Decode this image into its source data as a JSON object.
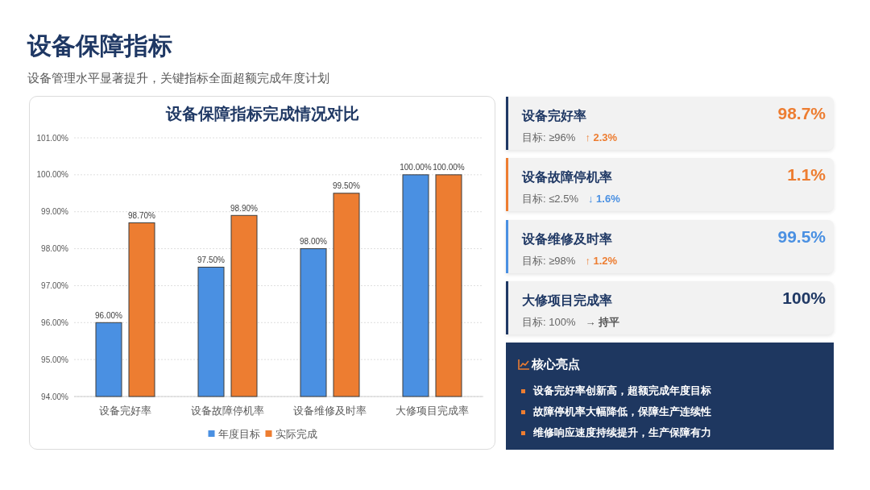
{
  "chart_data": [
    {
      "type": "other",
      "title": "设备保障指标",
      "subtitle": "设备管理水平显著提升，关键指标全面超额完成年度计划"
    },
    {
      "type": "bar",
      "title": "设备保障指标完成情况对比",
      "categories": [
        "设备完好率",
        "设备故障停机率",
        "设备维修及时率",
        "大修项目完成率"
      ],
      "series": [
        {
          "name": "年度目标",
          "color": "#4a90e2",
          "values": [
            96,
            97.5,
            98,
            100
          ],
          "value_labels": [
            "96.00%",
            "97.50%",
            "98.00%",
            "100.00%"
          ]
        },
        {
          "name": "实际完成",
          "color": "#ed7d31",
          "values": [
            98.7,
            98.9,
            99.5,
            100
          ],
          "value_labels": [
            "98.70%",
            "98.90%",
            "99.50%",
            "100.00%"
          ]
        }
      ],
      "ylim": [
        94,
        101
      ],
      "yticks": [
        {
          "value": 94,
          "label": "94.00%"
        },
        {
          "value": 95,
          "label": "95.00%"
        },
        {
          "value": 96,
          "label": "96.00%"
        },
        {
          "value": 97,
          "label": "97.00%"
        },
        {
          "value": 98,
          "label": "98.00%"
        },
        {
          "value": 99,
          "label": "99.00%"
        },
        {
          "value": 100,
          "label": "100.00%"
        },
        {
          "value": 101,
          "label": "101.00%"
        }
      ],
      "grid": "y",
      "legend": "bottom"
    },
    {
      "type": "other",
      "title": "设备完好率",
      "annotations": [
        "98.7%",
        "目标: ≥96%",
        "↑ 2.3%"
      ],
      "colors": [
        "#1f3864",
        "#ed7d31",
        "#ed7d31"
      ]
    },
    {
      "type": "other",
      "title": "设备故障停机率",
      "annotations": [
        "1.1%",
        "目标: ≤2.5%",
        "↓ 1.6%"
      ],
      "colors": [
        "#ed7d31",
        "#ed7d31",
        "#4a90e2"
      ]
    },
    {
      "type": "other",
      "title": "设备维修及时率",
      "annotations": [
        "99.5%",
        "目标: ≥98%",
        "↑ 1.2%"
      ],
      "colors": [
        "#4a90e2",
        "#4a90e2",
        "#ed7d31"
      ]
    },
    {
      "type": "other",
      "title": "大修项目完成率",
      "annotations": [
        "100%",
        "目标: 100%",
        "→ 持平"
      ],
      "colors": [
        "#1f3864",
        "#1f3864",
        "#555555"
      ]
    },
    {
      "type": "other",
      "title": "核心亮点",
      "annotations": [
        "设备完好率创新高，超额完成年度目标",
        "故障停机率大幅降低，保障生产连续性",
        "维修响应速度持续提升，生产保障有力"
      ]
    }
  ]
}
